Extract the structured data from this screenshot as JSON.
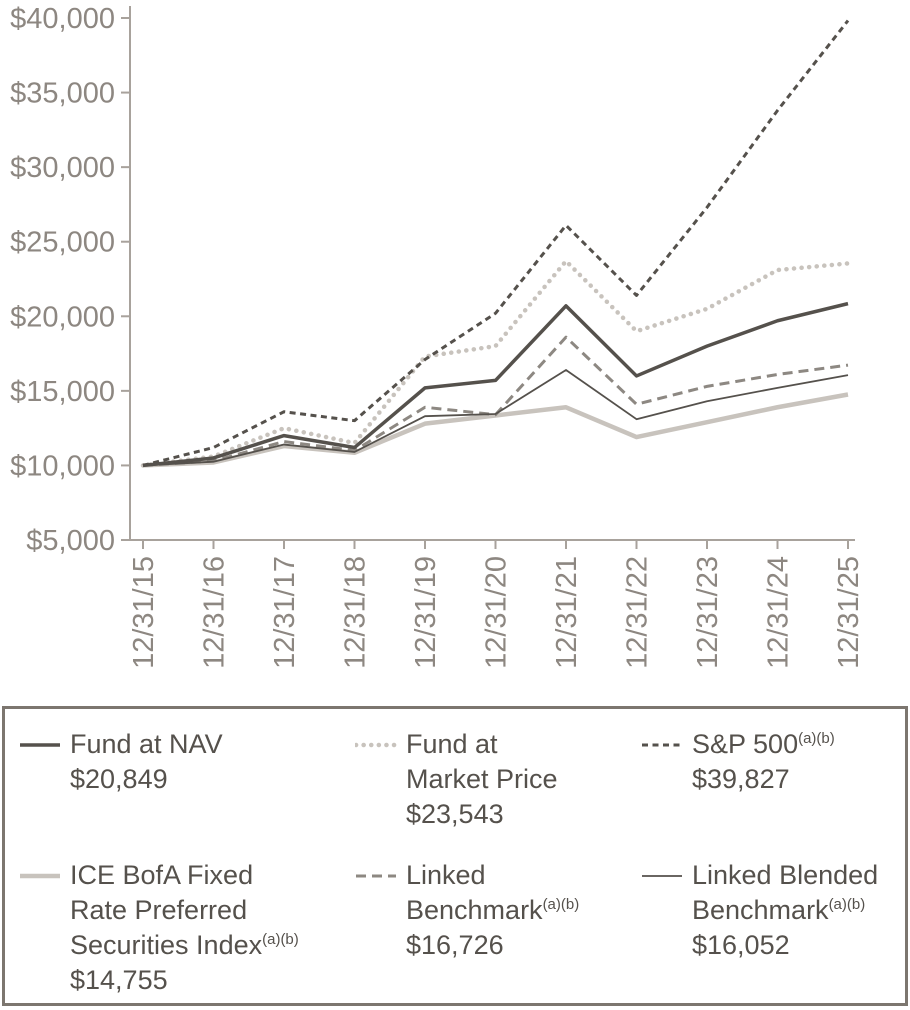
{
  "chart_data": {
    "type": "line",
    "x_labels": [
      "12/31/15",
      "12/31/16",
      "12/31/17",
      "12/31/18",
      "12/31/19",
      "12/31/20",
      "12/31/21",
      "12/31/22",
      "12/31/23",
      "12/31/24",
      "12/31/25"
    ],
    "ylim": [
      5000,
      40000
    ],
    "grid": false,
    "y_ticks": [
      {
        "value": 5000,
        "label": "$5,000"
      },
      {
        "value": 10000,
        "label": "$10,000"
      },
      {
        "value": 15000,
        "label": "$15,000"
      },
      {
        "value": 20000,
        "label": "$20,000"
      },
      {
        "value": 25000,
        "label": "$25,000"
      },
      {
        "value": 30000,
        "label": "$30,000"
      },
      {
        "value": 35000,
        "label": "$35,000"
      },
      {
        "value": 40000,
        "label": "$40,000"
      }
    ],
    "series": [
      {
        "name": "Fund at NAV",
        "color": "#55514c",
        "dash": "solid",
        "width": 3.5,
        "values": [
          10000,
          10500,
          12000,
          11200,
          15200,
          15700,
          20700,
          16000,
          18000,
          19700,
          20849
        ]
      },
      {
        "name": "Fund at Market Price",
        "color": "#c8c3bd",
        "dash": "dotted",
        "width": 4.5,
        "values": [
          10000,
          10600,
          12500,
          11500,
          17300,
          18000,
          23700,
          19000,
          20500,
          23100,
          23543
        ]
      },
      {
        "name": "S&P 500",
        "color": "#55514c",
        "dash": "dashed",
        "width": 3,
        "values": [
          10000,
          11200,
          13600,
          13000,
          17100,
          20200,
          26100,
          21400,
          27300,
          33800,
          39827
        ]
      },
      {
        "name": "ICE BofA Fixed Rate Preferred Securities Index",
        "color": "#c8c3bd",
        "dash": "solid",
        "width": 4.5,
        "values": [
          10000,
          10200,
          11300,
          10850,
          12800,
          13350,
          13900,
          11900,
          12900,
          13900,
          14755
        ]
      },
      {
        "name": "Linked Benchmark",
        "color": "#8d8882",
        "dash": "dashed-long",
        "width": 3,
        "values": [
          10000,
          10300,
          11600,
          11000,
          13900,
          13400,
          18600,
          14100,
          15300,
          16100,
          16726
        ]
      },
      {
        "name": "Linked Blended Benchmark",
        "color": "#55514c",
        "dash": "solid",
        "width": 1.8,
        "values": [
          10000,
          10250,
          11400,
          10900,
          13300,
          13450,
          16400,
          13100,
          14300,
          15200,
          16052
        ]
      }
    ]
  },
  "legend": {
    "items": [
      {
        "id": "fund-at-nav",
        "series": 0,
        "lines": [
          "Fund at NAV"
        ],
        "sup": "",
        "value": "$20,849"
      },
      {
        "id": "fund-at-market-price",
        "series": 1,
        "lines": [
          "Fund at",
          "Market Price"
        ],
        "sup": "",
        "value": "$23,543"
      },
      {
        "id": "sp-500",
        "series": 2,
        "lines": [
          "S&P 500"
        ],
        "sup": "(a)(b)",
        "value": "$39,827"
      },
      {
        "id": "ice-bofa-index",
        "series": 3,
        "lines": [
          "ICE BofA Fixed",
          "Rate Preferred",
          "Securities Index"
        ],
        "sup": "(a)(b)",
        "value": "$14,755"
      },
      {
        "id": "linked-benchmark",
        "series": 4,
        "lines": [
          "Linked",
          "Benchmark"
        ],
        "sup": "(a)(b)",
        "value": "$16,726"
      },
      {
        "id": "linked-blended-benchmark",
        "series": 5,
        "lines": [
          "Linked Blended",
          "Benchmark"
        ],
        "sup": "(a)(b)",
        "value": "$16,052"
      }
    ]
  },
  "colors": {
    "dark_line": "#55514c",
    "light_line": "#c8c3bd",
    "mid_line": "#8d8882",
    "axis": "#a8a29c",
    "axis_text": "#8d8781",
    "legend_border": "#7c766f"
  }
}
